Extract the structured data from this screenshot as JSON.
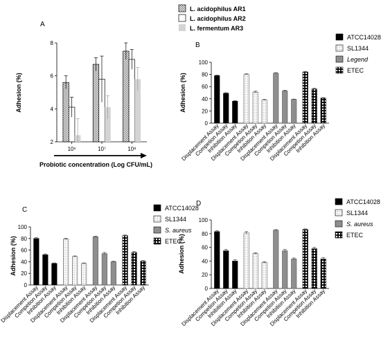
{
  "chart_data": [
    {
      "panel": "A",
      "type": "bar",
      "ylabel": "Adhesion (%)",
      "xlabel": "Probiotic concentration (Log CFU/mL)",
      "ylim": [
        2,
        8
      ],
      "yticks": [
        2,
        4,
        6,
        8
      ],
      "categories": [
        "10⁶",
        "10⁷",
        "10⁸"
      ],
      "series": [
        {
          "name": "L. acidophilus AR1",
          "values": [
            5.6,
            6.7,
            7.5
          ],
          "err": [
            0.4,
            0.4,
            0.5
          ]
        },
        {
          "name": "L. acidophilus AR2",
          "values": [
            4.1,
            5.8,
            7.0
          ],
          "err": [
            0.6,
            1.4,
            0.6
          ]
        },
        {
          "name": "L. fermentum AR3",
          "values": [
            2.4,
            4.1,
            5.8
          ],
          "err": [
            1.0,
            0.7,
            0.7
          ]
        }
      ],
      "legend": "top"
    },
    {
      "panel": "B",
      "type": "bar",
      "ylabel": "Adhesion (%)",
      "ylim": [
        0,
        100
      ],
      "yticks": [
        0,
        20,
        40,
        60,
        80,
        100
      ],
      "categories": [
        "Displacement Assay",
        "Competion Assay",
        "Inhibition Assay"
      ],
      "series": [
        {
          "name": "ATCC14028",
          "values": [
            78,
            49,
            36
          ],
          "err": [
            1,
            1,
            1
          ]
        },
        {
          "name": "SL1344",
          "values": [
            80,
            51,
            38
          ],
          "err": [
            1,
            1.5,
            1
          ]
        },
        {
          "name": "Legend",
          "values": [
            82,
            53,
            39
          ],
          "err": [
            1,
            1,
            0.5
          ]
        },
        {
          "name": "ETEC",
          "values": [
            84,
            56,
            41
          ],
          "err": [
            1,
            1.5,
            1
          ]
        }
      ],
      "legend": "right"
    },
    {
      "panel": "C",
      "type": "bar",
      "ylabel": "Adhesion (%)",
      "ylim": [
        0,
        100
      ],
      "yticks": [
        0,
        20,
        40,
        60,
        80,
        100
      ],
      "categories": [
        "Displacement Assay",
        "Competion Assay",
        "Inhibition Assay"
      ],
      "series": [
        {
          "name": "ATCC14028",
          "values": [
            80,
            52,
            37
          ],
          "err": [
            1.5,
            1.5,
            1
          ]
        },
        {
          "name": "SL1344",
          "values": [
            79,
            49,
            37
          ],
          "err": [
            1.5,
            1,
            1
          ]
        },
        {
          "name": "S. aureus",
          "values": [
            83,
            54,
            40
          ],
          "err": [
            1,
            2,
            1
          ]
        },
        {
          "name": "ETEC",
          "values": [
            85,
            56,
            41
          ],
          "err": [
            1,
            1.5,
            1
          ]
        }
      ],
      "legend": "right"
    },
    {
      "panel": "D",
      "type": "bar",
      "ylabel": "Adhesion (%)",
      "ylim": [
        0,
        100
      ],
      "yticks": [
        0,
        20,
        40,
        60,
        80,
        100
      ],
      "categories": [
        "Displacement Assay",
        "Competion Assay",
        "Inhibition Assay"
      ],
      "series": [
        {
          "name": "ATCC14028",
          "values": [
            83,
            55,
            40
          ],
          "err": [
            1.5,
            2,
            2
          ]
        },
        {
          "name": "SL1344",
          "values": [
            81,
            51,
            38
          ],
          "err": [
            2,
            1,
            1
          ]
        },
        {
          "name": "S. aureus",
          "values": [
            85,
            55,
            43
          ],
          "err": [
            1,
            2,
            1.5
          ]
        },
        {
          "name": "ETEC",
          "values": [
            86,
            58,
            43
          ],
          "err": [
            1,
            2,
            2
          ]
        }
      ],
      "legend": "right"
    }
  ]
}
